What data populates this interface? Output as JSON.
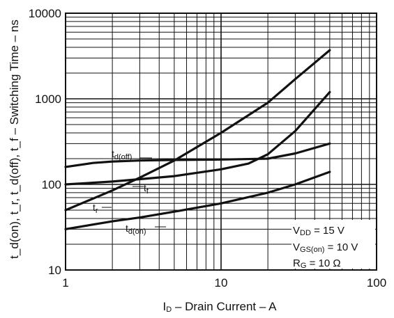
{
  "chart_data": {
    "type": "line",
    "title": "",
    "xlabel": "I_D – Drain Current – A",
    "xlabel_parts": {
      "main": "I",
      "sub": "D",
      "rest": " – Drain Current – A"
    },
    "ylabel": "t_d(on), t_r, t_d(off), t_f – Switching Time – ns",
    "xscale": "log",
    "yscale": "log",
    "xlim": [
      1,
      100
    ],
    "ylim": [
      10,
      10000
    ],
    "x_tick_labels": [
      "1",
      "10",
      "100"
    ],
    "y_tick_labels": [
      "10",
      "100",
      "1000",
      "10000"
    ],
    "grid": true,
    "series": [
      {
        "name": "td(off)",
        "label_main": "t",
        "label_sub": "d(off)",
        "x": [
          1,
          1.5,
          2,
          3,
          5,
          10,
          20,
          30,
          50
        ],
        "y": [
          160,
          178,
          185,
          190,
          193,
          195,
          200,
          230,
          300
        ]
      },
      {
        "name": "tf",
        "label_main": "t",
        "label_sub": "f",
        "x": [
          1,
          2,
          3,
          5,
          10,
          15,
          20,
          30,
          50
        ],
        "y": [
          100,
          108,
          115,
          125,
          150,
          175,
          225,
          420,
          1200
        ]
      },
      {
        "name": "tr",
        "label_main": "t",
        "label_sub": "r",
        "x": [
          1,
          2,
          3,
          5,
          10,
          20,
          30,
          50
        ],
        "y": [
          50,
          85,
          120,
          190,
          400,
          900,
          1700,
          3700
        ]
      },
      {
        "name": "td(on)",
        "label_main": "t",
        "label_sub": "d(on)",
        "x": [
          1,
          2,
          3,
          5,
          10,
          20,
          30,
          50
        ],
        "y": [
          30,
          37,
          41,
          48,
          60,
          80,
          100,
          140
        ]
      }
    ],
    "conditions": [
      {
        "main": "V",
        "sub": "DD",
        "value": " = 15 V"
      },
      {
        "main": "V",
        "sub": "GS(on)",
        "value": " = 10 V"
      },
      {
        "main": "R",
        "sub": "G",
        "value": " = 10 Ω"
      }
    ]
  }
}
